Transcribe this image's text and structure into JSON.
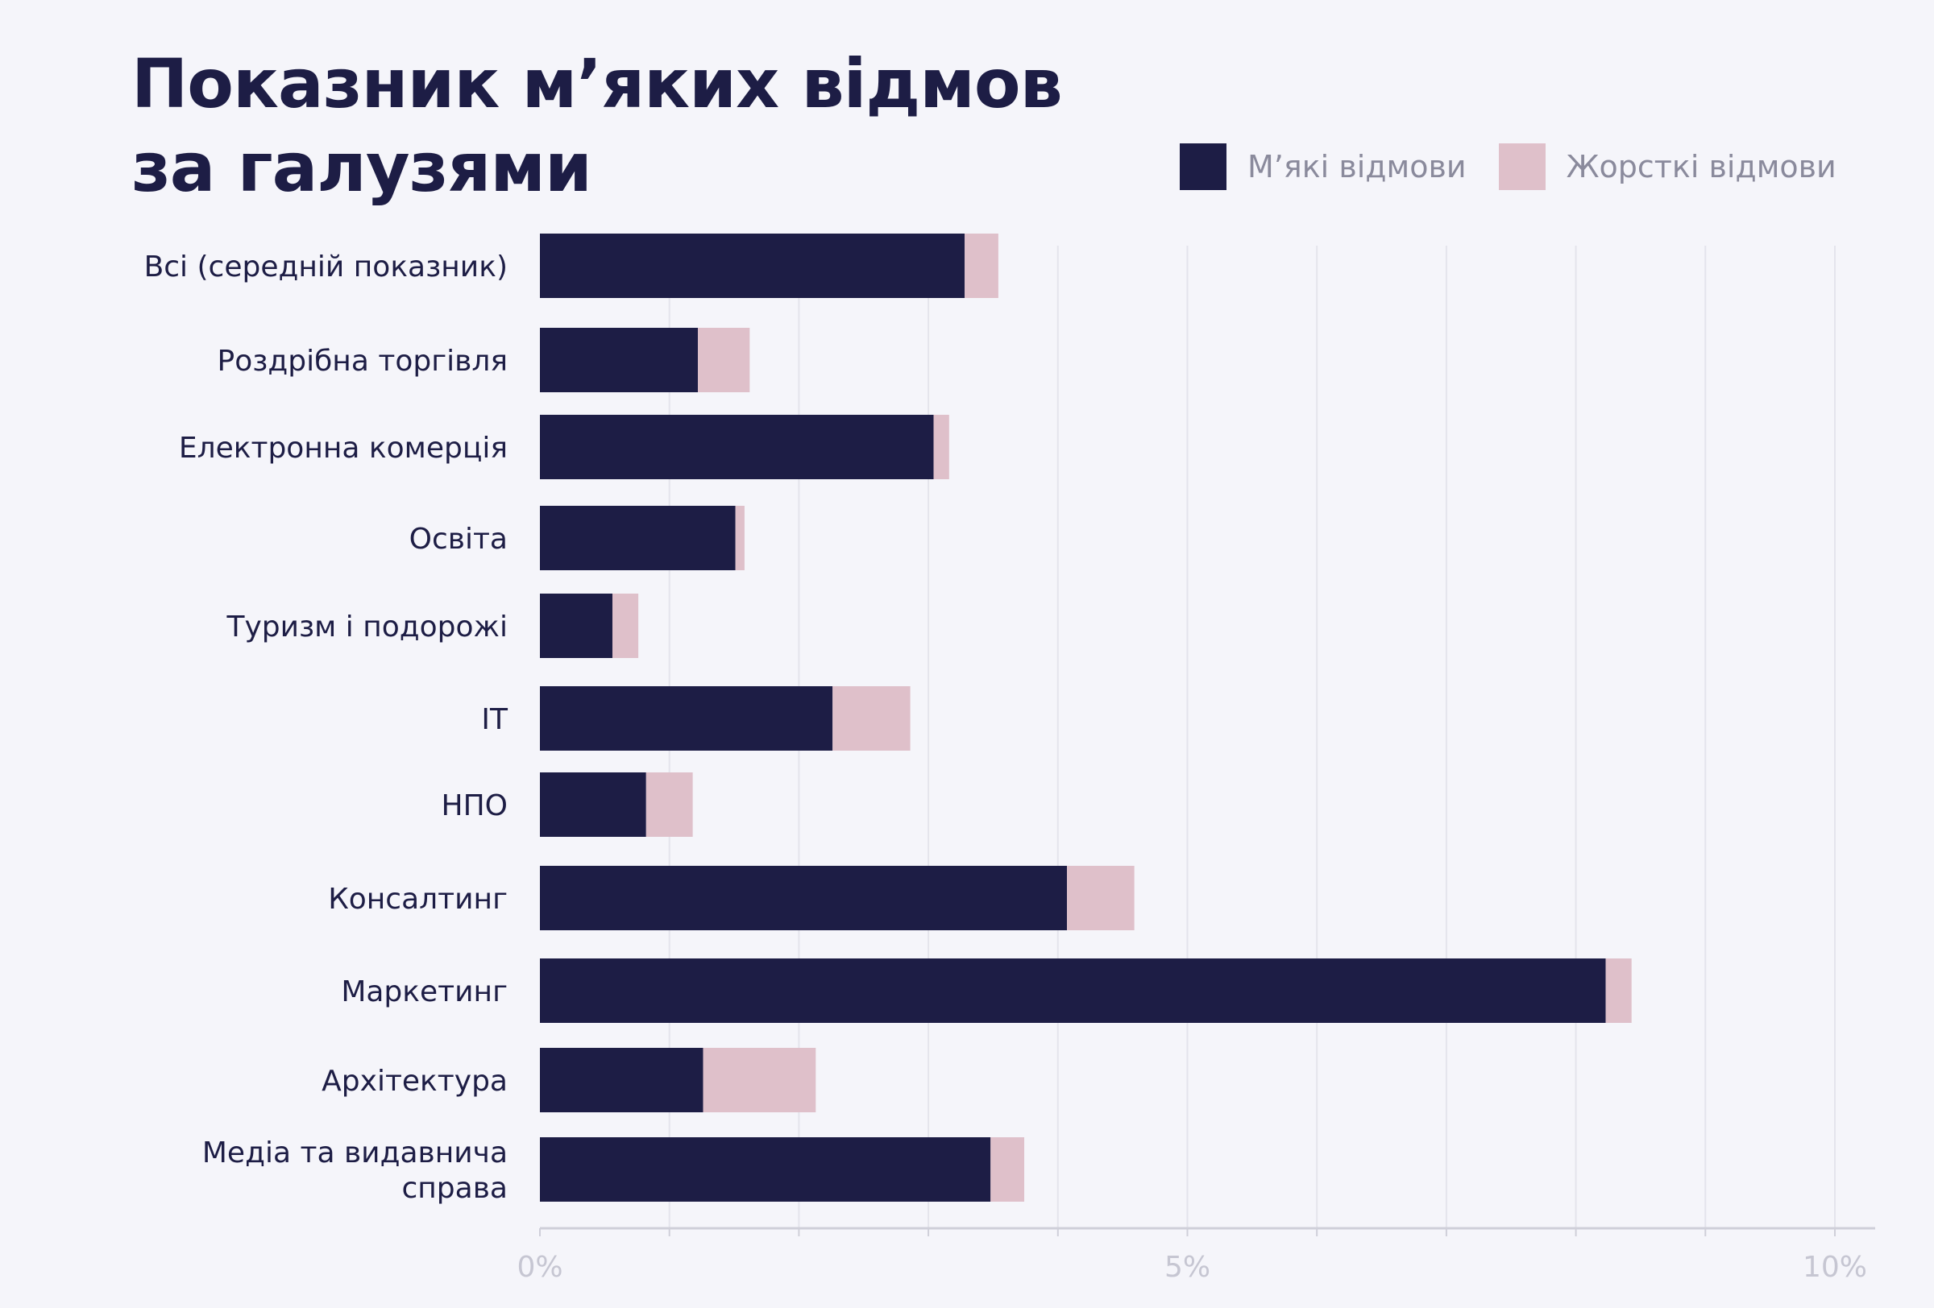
{
  "chart_data": {
    "type": "bar",
    "orientation": "horizontal",
    "stacked": true,
    "title": "Показник м’яких відмов за галузями",
    "title_lines": [
      "Показник м’яких відмов",
      "за галузями"
    ],
    "categories": [
      "Всі (середній показник)",
      "Роздрібна торгівля",
      "Електронна комерція",
      "Освіта",
      "Туризм і подорожі",
      "IT",
      "НПО",
      "Консалтинг",
      "Маркетинг",
      "Архітектура",
      "Медіа та видавнича справа"
    ],
    "category_lines": [
      [
        "Всі (середній показник)"
      ],
      [
        "Роздрібна торгівля"
      ],
      [
        "Електронна комерція"
      ],
      [
        "Освіта"
      ],
      [
        "Туризм і подорожі"
      ],
      [
        "IT"
      ],
      [
        "НПО"
      ],
      [
        "Консалтинг"
      ],
      [
        "Маркетинг"
      ],
      [
        "Архітектура"
      ],
      [
        "Медіа та видавнича",
        "справа"
      ]
    ],
    "series": [
      {
        "name": "М’які відмови",
        "color": "#1d1d45",
        "values": [
          3.28,
          1.22,
          3.04,
          1.51,
          0.56,
          2.26,
          0.82,
          4.07,
          8.23,
          1.26,
          3.48
        ]
      },
      {
        "name": "Жорсткі відмови",
        "color": "#dfc0ca",
        "values": [
          0.26,
          0.4,
          0.12,
          0.07,
          0.2,
          0.6,
          0.36,
          0.52,
          0.2,
          0.87,
          0.26
        ]
      }
    ],
    "xlim": [
      0,
      10
    ],
    "x_ticks": [
      "0%",
      "5%",
      "10%"
    ],
    "x_tick_values": [
      0,
      5,
      10
    ],
    "grid_values": [
      1,
      2,
      3,
      4,
      5,
      6,
      7,
      8,
      9,
      10
    ],
    "legend_position": "top-right",
    "grid": true,
    "colors": {
      "background": "#f5f5fa",
      "grid": "#e4e4ec",
      "axis": "#cfcfd9",
      "tick_text": "#c6c6d2",
      "label_text": "#1d1d45"
    }
  }
}
